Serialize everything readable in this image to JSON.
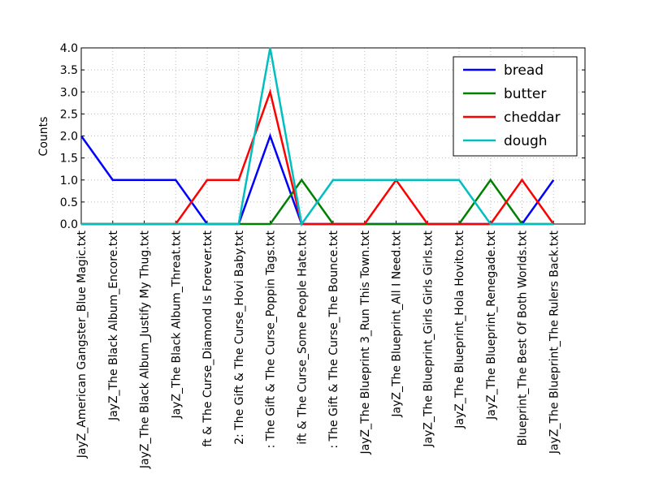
{
  "chart_data": {
    "type": "line",
    "ylabel": "Counts",
    "categories": [
      "JayZ_American Gangster_Blue Magic.txt",
      "JayZ_The Black Album_Encore.txt",
      "JayZ_The Black Album_Justify My Thug.txt",
      "JayZ_The Black Album_Threat.txt",
      "ft & The Curse_Diamond Is Forever.txt",
      "2: The Gift & The Curse_Hovi Baby.txt",
      ": The Gift & The Curse_Poppin Tags.txt",
      "ift & The Curse_Some People Hate.txt",
      ": The Gift & The Curse_The Bounce.txt",
      "JayZ_The Blueprint 3_Run This Town.txt",
      "JayZ_The Blueprint_All I Need.txt",
      "JayZ_The Blueprint_Girls Girls Girls.txt",
      "JayZ_The Blueprint_Hola Hovito.txt",
      "JayZ_The Blueprint_Renegade.txt",
      "Blueprint_The Best Of Both Worlds.txt",
      "JayZ_The Blueprint_The Rulers Back.txt"
    ],
    "series": [
      {
        "name": "bread",
        "color": "#0000ff",
        "values": [
          2,
          1,
          1,
          1,
          0,
          0,
          2,
          0,
          0,
          0,
          0,
          0,
          0,
          0,
          0,
          1
        ]
      },
      {
        "name": "butter",
        "color": "#008000",
        "values": [
          0,
          0,
          0,
          0,
          0,
          0,
          0,
          1,
          0,
          0,
          0,
          0,
          0,
          1,
          0,
          0
        ]
      },
      {
        "name": "cheddar",
        "color": "#ff0000",
        "values": [
          0,
          0,
          0,
          0,
          1,
          1,
          3,
          0,
          0,
          0,
          1,
          0,
          0,
          0,
          1,
          0
        ]
      },
      {
        "name": "dough",
        "color": "#00bfbf",
        "values": [
          0,
          0,
          0,
          0,
          0,
          0,
          4,
          0,
          1,
          1,
          1,
          1,
          1,
          0,
          0,
          0
        ]
      }
    ],
    "xlim": [
      0,
      16
    ],
    "ylim": [
      0,
      4
    ],
    "yticks": [
      {
        "value": 0,
        "label": "0.0"
      },
      {
        "value": 0.5,
        "label": "0.5"
      },
      {
        "value": 1,
        "label": "1.0"
      },
      {
        "value": 1.5,
        "label": "1.5"
      },
      {
        "value": 2,
        "label": "2.0"
      },
      {
        "value": 2.5,
        "label": "2.5"
      },
      {
        "value": 3,
        "label": "3.0"
      },
      {
        "value": 3.5,
        "label": "3.5"
      },
      {
        "value": 4,
        "label": "4.0"
      }
    ],
    "grid": true,
    "legend": "upper right"
  }
}
